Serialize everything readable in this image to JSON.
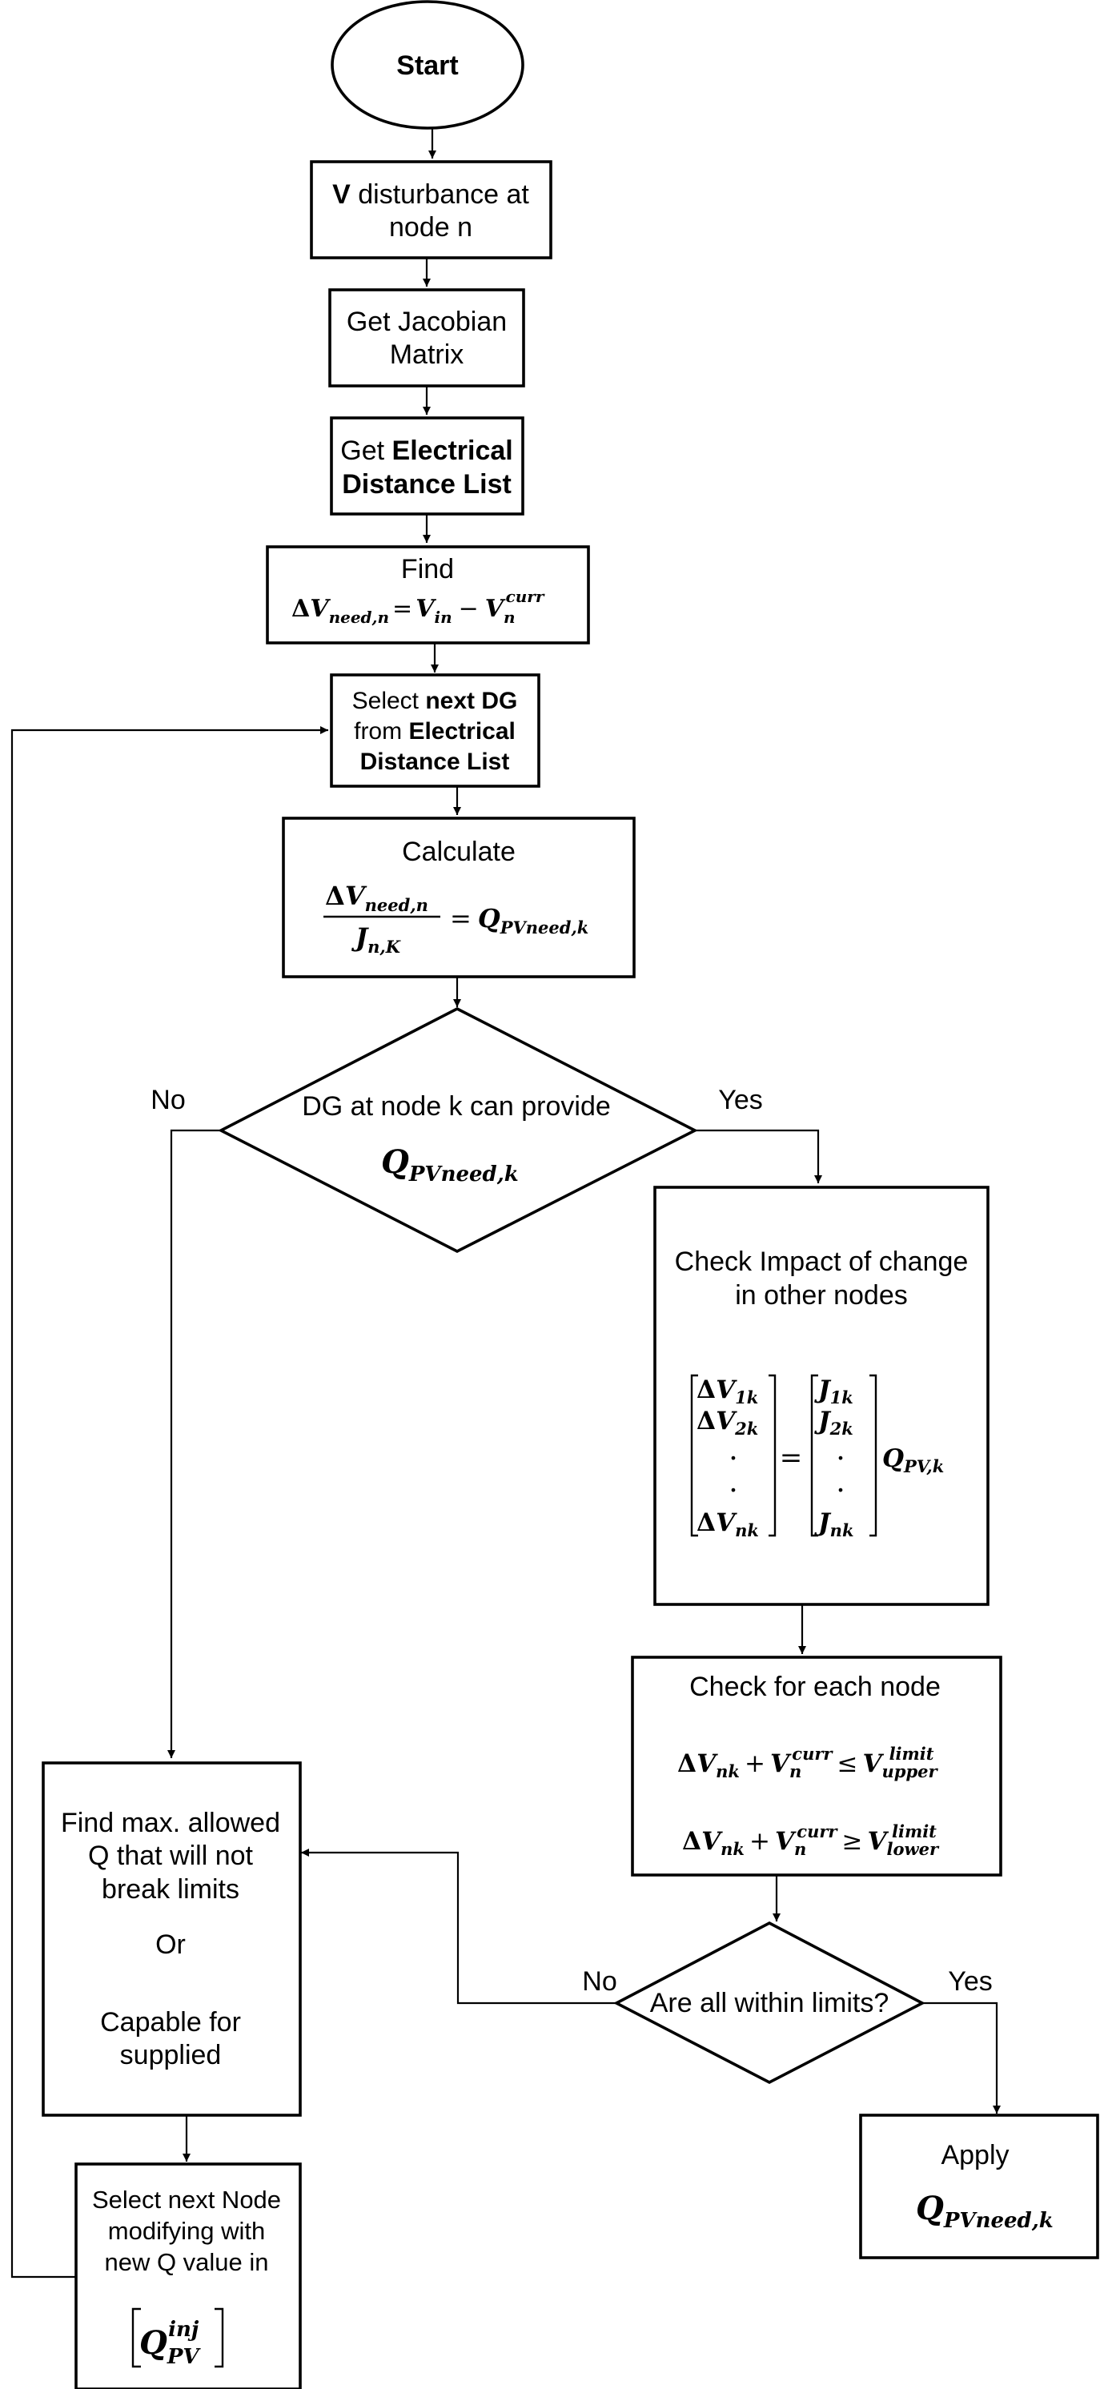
{
  "nodes": {
    "start": {
      "label": "Start"
    },
    "disturbance": {
      "bold_prefix": "V",
      "line1_rest": " disturbance at",
      "line2": "node n"
    },
    "jacobian": {
      "line1": "Get Jacobian",
      "line2": "Matrix"
    },
    "distance_list": {
      "line1_prefix": "Get ",
      "line1_bold": "Electrical",
      "line2_bold": "Distance List"
    },
    "find_dv": {
      "title": "Find",
      "formula": "ΔV_{need,n} = V_{in} − V_n^{curr}"
    },
    "select_dg": {
      "line1_prefix": "Select ",
      "line1_bold": "next DG",
      "line2": "from ",
      "line2_bold": "Electrical",
      "line3_bold": "Distance List"
    },
    "calculate": {
      "title": "Calculate",
      "formula": "ΔV_{need,n} / J_{n,K} = Q_{PVneed,k}"
    },
    "dg_decision": {
      "line1": "DG at node k can provide",
      "formula": "Q_{PVneed,k}"
    },
    "check_impact": {
      "line1": "Check Impact of change",
      "line2": "in other nodes",
      "formula": "[ΔV_1k ΔV_2k . . ΔV_nk] = [J_1k J_2k . . J_nk] Q_{PV,k}"
    },
    "check_each": {
      "title": "Check for each node",
      "formula1": "ΔV_nk + V_n^curr ≤ V_upper^limit",
      "formula2": "ΔV_nk + V_n^curr ≥ V_lower^limit"
    },
    "within_limits": {
      "label": "Are all within limits?"
    },
    "find_max": {
      "line1": "Find max. allowed",
      "line2": "Q that will not",
      "line3": "break limits",
      "line4": "Or",
      "line5": "Capable  for",
      "line6": "supplied"
    },
    "apply": {
      "title": "Apply",
      "formula": "Q_{PVneed,k}"
    },
    "select_node": {
      "line1": "Select next Node",
      "line2": "modifying with",
      "line3": "new Q value in",
      "formula": "[Q_PV^inj]"
    }
  },
  "edge_labels": {
    "dg_no": "No",
    "dg_yes": "Yes",
    "limits_no": "No",
    "limits_yes": "Yes"
  },
  "math": {
    "delta": "Δ",
    "V": "V",
    "J": "J",
    "Q": "Q",
    "need_n": "need,n",
    "need": "need",
    "in": "in",
    "n": "n",
    "curr": "curr",
    "nK": "n,K",
    "PVneed_k": "PVneed,k",
    "PV_k": "PV,k",
    "PV": "PV",
    "inj": "inj",
    "k1": "1k",
    "k2": "2k",
    "nk": "nk",
    "limit": "limit",
    "upper": "upper",
    "lower": "lower",
    "eq": "=",
    "minus": "−",
    "plus": "+",
    "le": "≤",
    "ge": "≥",
    "dot": "."
  }
}
